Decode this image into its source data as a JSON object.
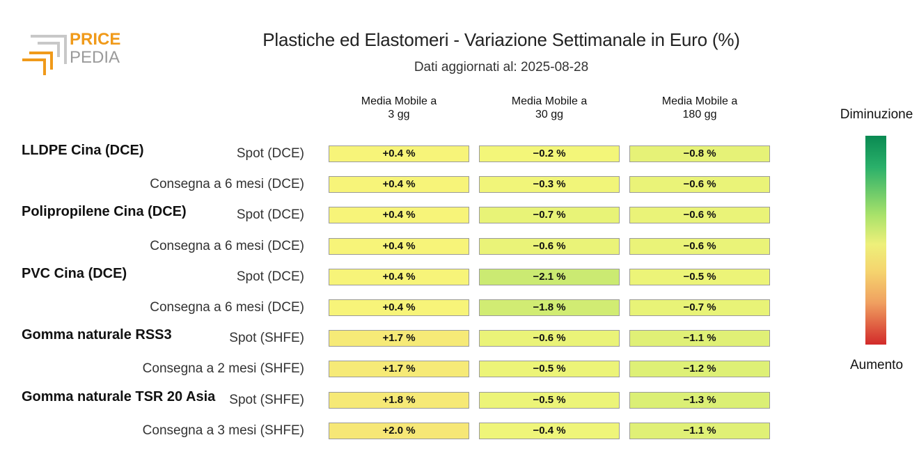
{
  "logo": {
    "line1": "PRICE",
    "line2": "PEDIA"
  },
  "chart_data": {
    "type": "table",
    "title": "Plastiche ed Elastomeri - Variazione Settimanale in Euro (%)",
    "subtitle": "Dati aggiornati al: 2025-08-28",
    "columns": [
      "Media Mobile a\n3 gg",
      "Media Mobile a\n30 gg",
      "Media Mobile a\n180 gg"
    ],
    "groups": [
      {
        "name": "LLDPE Cina (DCE)",
        "rows": [
          {
            "label": "Spot (DCE)",
            "values": [
              0.4,
              -0.2,
              -0.8
            ],
            "display": [
              "+0.4 %",
              "−0.2 %",
              "−0.8 %"
            ]
          },
          {
            "label": "Consegna a 6 mesi (DCE)",
            "values": [
              0.4,
              -0.3,
              -0.6
            ],
            "display": [
              "+0.4 %",
              "−0.3 %",
              "−0.6 %"
            ]
          }
        ]
      },
      {
        "name": "Polipropilene Cina (DCE)",
        "rows": [
          {
            "label": "Spot (DCE)",
            "values": [
              0.4,
              -0.7,
              -0.6
            ],
            "display": [
              "+0.4 %",
              "−0.7 %",
              "−0.6 %"
            ]
          },
          {
            "label": "Consegna a 6 mesi (DCE)",
            "values": [
              0.4,
              -0.6,
              -0.6
            ],
            "display": [
              "+0.4 %",
              "−0.6 %",
              "−0.6 %"
            ]
          }
        ]
      },
      {
        "name": "PVC Cina (DCE)",
        "rows": [
          {
            "label": "Spot (DCE)",
            "values": [
              0.4,
              -2.1,
              -0.5
            ],
            "display": [
              "+0.4 %",
              "−2.1 %",
              "−0.5 %"
            ]
          },
          {
            "label": "Consegna a 6 mesi (DCE)",
            "values": [
              0.4,
              -1.8,
              -0.7
            ],
            "display": [
              "+0.4 %",
              "−1.8 %",
              "−0.7 %"
            ]
          }
        ]
      },
      {
        "name": "Gomma naturale RSS3",
        "rows": [
          {
            "label": "Spot (SHFE)",
            "values": [
              1.7,
              -0.6,
              -1.1
            ],
            "display": [
              "+1.7 %",
              "−0.6 %",
              "−1.1 %"
            ]
          },
          {
            "label": "Consegna a 2 mesi (SHFE)",
            "values": [
              1.7,
              -0.5,
              -1.2
            ],
            "display": [
              "+1.7 %",
              "−0.5 %",
              "−1.2 %"
            ]
          }
        ]
      },
      {
        "name": "Gomma naturale TSR 20 Asia",
        "rows": [
          {
            "label": "Spot (SHFE)",
            "values": [
              1.8,
              -0.5,
              -1.3
            ],
            "display": [
              "+1.8 %",
              "−0.5 %",
              "−1.3 %"
            ]
          },
          {
            "label": "Consegna a 3 mesi (SHFE)",
            "values": [
              2.0,
              -0.4,
              -1.1
            ],
            "display": [
              "+2.0 %",
              "−0.4 %",
              "−1.1 %"
            ]
          }
        ]
      }
    ],
    "legend": {
      "top": "Diminuzione",
      "bottom": "Aumento"
    },
    "colors": {
      "decrease_strong": "#0a8a52",
      "neutral": "#f7f77a",
      "increase_strong": "#d22a2a"
    }
  }
}
